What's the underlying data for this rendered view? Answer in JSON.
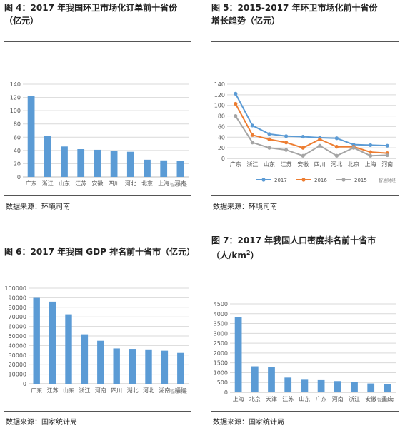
{
  "panels": [
    {
      "title": "图 4：2017 年我国环卫市场化订单前十省份（亿元）",
      "source": "数据来源：环境司南"
    },
    {
      "title": "图 5：2015-2017 年环卫市场化前十省份增长趋势（亿元）",
      "source": "数据来源：环境司南"
    },
    {
      "title": "图 6：2017 年我国 GDP 排名前十省市（亿元）",
      "source": "数据来源：国家统计局"
    },
    {
      "title_main": "图 7：2017 年我国人口密度排名前十省市（人/km",
      "title_sup": "2",
      "title_end": "）",
      "source": "数据来源：国家统计局"
    }
  ],
  "watermark": "智通财经",
  "colors": {
    "bar": "#5b9bd5",
    "s2017": "#5b9bd5",
    "s2016": "#ed7d31",
    "s2015": "#a5a5a5",
    "grid": "#d9d9d9"
  },
  "chart_data": [
    {
      "type": "bar",
      "title": "2017 年我国环卫市场化订单前十省份（亿元）",
      "categories": [
        "广东",
        "浙江",
        "山东",
        "江苏",
        "安徽",
        "四川",
        "河北",
        "北京",
        "上海",
        "河南"
      ],
      "values": [
        122,
        62,
        46,
        42,
        41,
        39,
        38,
        26,
        25,
        24
      ],
      "ylim": [
        0,
        140
      ],
      "yticks": [
        0,
        20,
        40,
        60,
        80,
        100,
        120,
        140
      ],
      "grid": true
    },
    {
      "type": "line",
      "title": "2015-2017 年环卫市场化前十省份增长趋势（亿元）",
      "categories": [
        "广东",
        "浙江",
        "山东",
        "江苏",
        "安徽",
        "四川",
        "河北",
        "北京",
        "上海",
        "河南"
      ],
      "series": [
        {
          "name": "2017",
          "values": [
            122,
            62,
            46,
            42,
            41,
            39,
            38,
            26,
            25,
            24
          ]
        },
        {
          "name": "2016",
          "values": [
            103,
            44,
            36,
            30,
            20,
            36,
            22,
            22,
            12,
            10
          ]
        },
        {
          "name": "2015",
          "values": [
            80,
            30,
            20,
            16,
            5,
            24,
            5,
            20,
            5,
            6
          ]
        }
      ],
      "ylim": [
        0,
        140
      ],
      "yticks": [
        0,
        20,
        40,
        60,
        80,
        100,
        120,
        140
      ],
      "legend": "bottom",
      "grid": true
    },
    {
      "type": "bar",
      "title": "2017 年我国 GDP 排名前十省市（亿元）",
      "categories": [
        "广东",
        "江苏",
        "山东",
        "浙江",
        "河南",
        "四川",
        "湖北",
        "河北",
        "湖南",
        "福建"
      ],
      "values": [
        89879,
        85900,
        72678,
        51768,
        44988,
        36980,
        36523,
        35964,
        34591,
        32298
      ],
      "ylim": [
        0,
        100000
      ],
      "yticks": [
        0,
        10000,
        20000,
        30000,
        40000,
        50000,
        60000,
        70000,
        80000,
        90000,
        100000
      ],
      "grid": true
    },
    {
      "type": "bar",
      "title": "2017 年我国人口密度排名前十省市（人/km2）",
      "categories": [
        "上海",
        "北京",
        "天津",
        "江苏",
        "山东",
        "广东",
        "河南",
        "浙江",
        "安徽",
        "重庆"
      ],
      "values": [
        3814,
        1323,
        1300,
        750,
        640,
        620,
        570,
        540,
        450,
        410
      ],
      "ylim": [
        0,
        4500
      ],
      "yticks": [
        0,
        500,
        1000,
        1500,
        2000,
        2500,
        3000,
        3500,
        4000,
        4500
      ],
      "grid": true
    }
  ]
}
